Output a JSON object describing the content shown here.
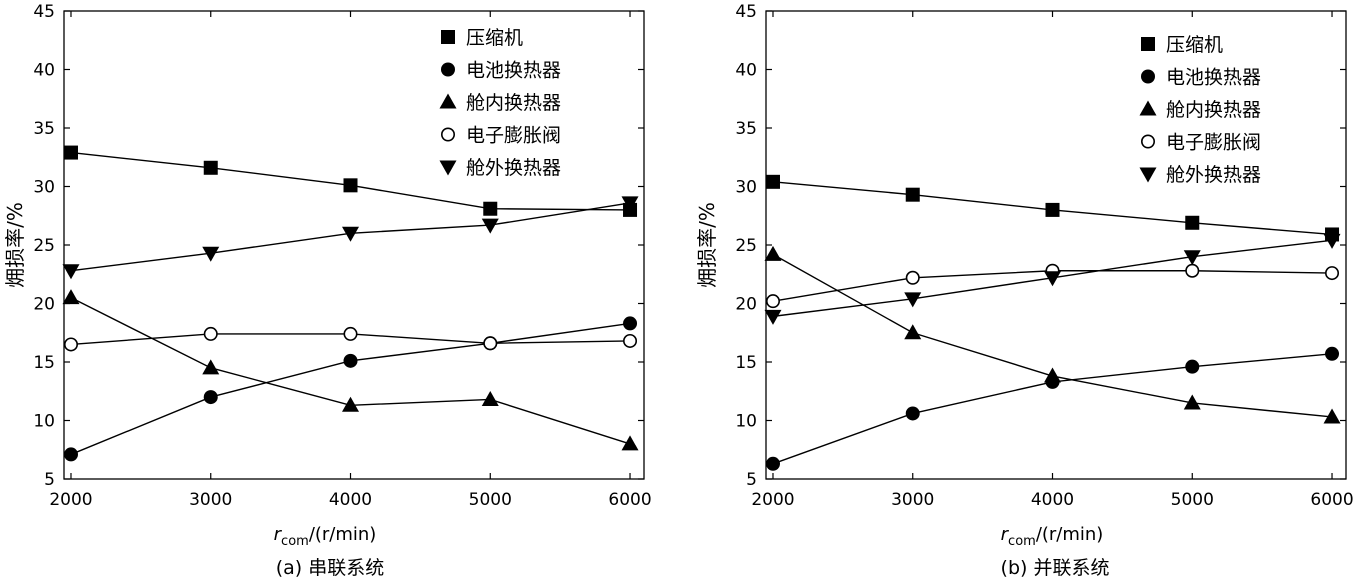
{
  "chart_data": [
    {
      "type": "line",
      "caption": "(a) 串联系统",
      "xlabel_var": "r",
      "xlabel_sub": "com",
      "xlabel_rest": "/(r/min)",
      "ylabel": "㶲损率/%",
      "xlim": [
        1950,
        6100
      ],
      "ylim": [
        5,
        45
      ],
      "x": [
        2000,
        3000,
        4000,
        5000,
        6000
      ],
      "xticks": [
        "2000",
        "3000",
        "4000",
        "5000",
        "6000"
      ],
      "yticks": [
        "5",
        "10",
        "15",
        "20",
        "25",
        "30",
        "35",
        "40",
        "45"
      ],
      "legend_position": "top-right",
      "series": [
        {
          "name": "压缩机",
          "marker": "square",
          "values": [
            32.9,
            31.6,
            30.1,
            28.1,
            28.0
          ]
        },
        {
          "name": "电池换热器",
          "marker": "circle",
          "values": [
            7.1,
            12.0,
            15.1,
            16.6,
            18.3
          ]
        },
        {
          "name": "舱内换热器",
          "marker": "triangle-up",
          "values": [
            20.5,
            14.5,
            11.3,
            11.8,
            8.0
          ]
        },
        {
          "name": "电子膨胀阀",
          "marker": "circle-open",
          "values": [
            16.5,
            17.4,
            17.4,
            16.6,
            16.8
          ]
        },
        {
          "name": "舱外换热器",
          "marker": "triangle-down",
          "values": [
            22.8,
            24.3,
            26.0,
            26.7,
            28.6
          ]
        }
      ]
    },
    {
      "type": "line",
      "caption": "(b) 并联系统",
      "xlabel_var": "r",
      "xlabel_sub": "com",
      "xlabel_rest": "/(r/min)",
      "ylabel": "㶲损率/%",
      "xlim": [
        1950,
        6100
      ],
      "ylim": [
        5,
        45
      ],
      "x": [
        2000,
        3000,
        4000,
        5000,
        6000
      ],
      "xticks": [
        "2000",
        "3000",
        "4000",
        "5000",
        "6000"
      ],
      "yticks": [
        "5",
        "10",
        "15",
        "20",
        "25",
        "30",
        "35",
        "40",
        "45"
      ],
      "legend_position": "top-right",
      "series": [
        {
          "name": "压缩机",
          "marker": "square",
          "values": [
            30.4,
            29.3,
            28.0,
            26.9,
            25.9
          ]
        },
        {
          "name": "电池换热器",
          "marker": "circle",
          "values": [
            6.3,
            10.6,
            13.3,
            14.6,
            15.7
          ]
        },
        {
          "name": "舱内换热器",
          "marker": "triangle-up",
          "values": [
            24.2,
            17.5,
            13.8,
            11.5,
            10.3
          ]
        },
        {
          "name": "电子膨胀阀",
          "marker": "circle-open",
          "values": [
            20.2,
            22.2,
            22.8,
            22.8,
            22.6
          ]
        },
        {
          "name": "舱外换热器",
          "marker": "triangle-down",
          "values": [
            18.9,
            20.4,
            22.2,
            24.0,
            25.4
          ]
        }
      ]
    }
  ]
}
